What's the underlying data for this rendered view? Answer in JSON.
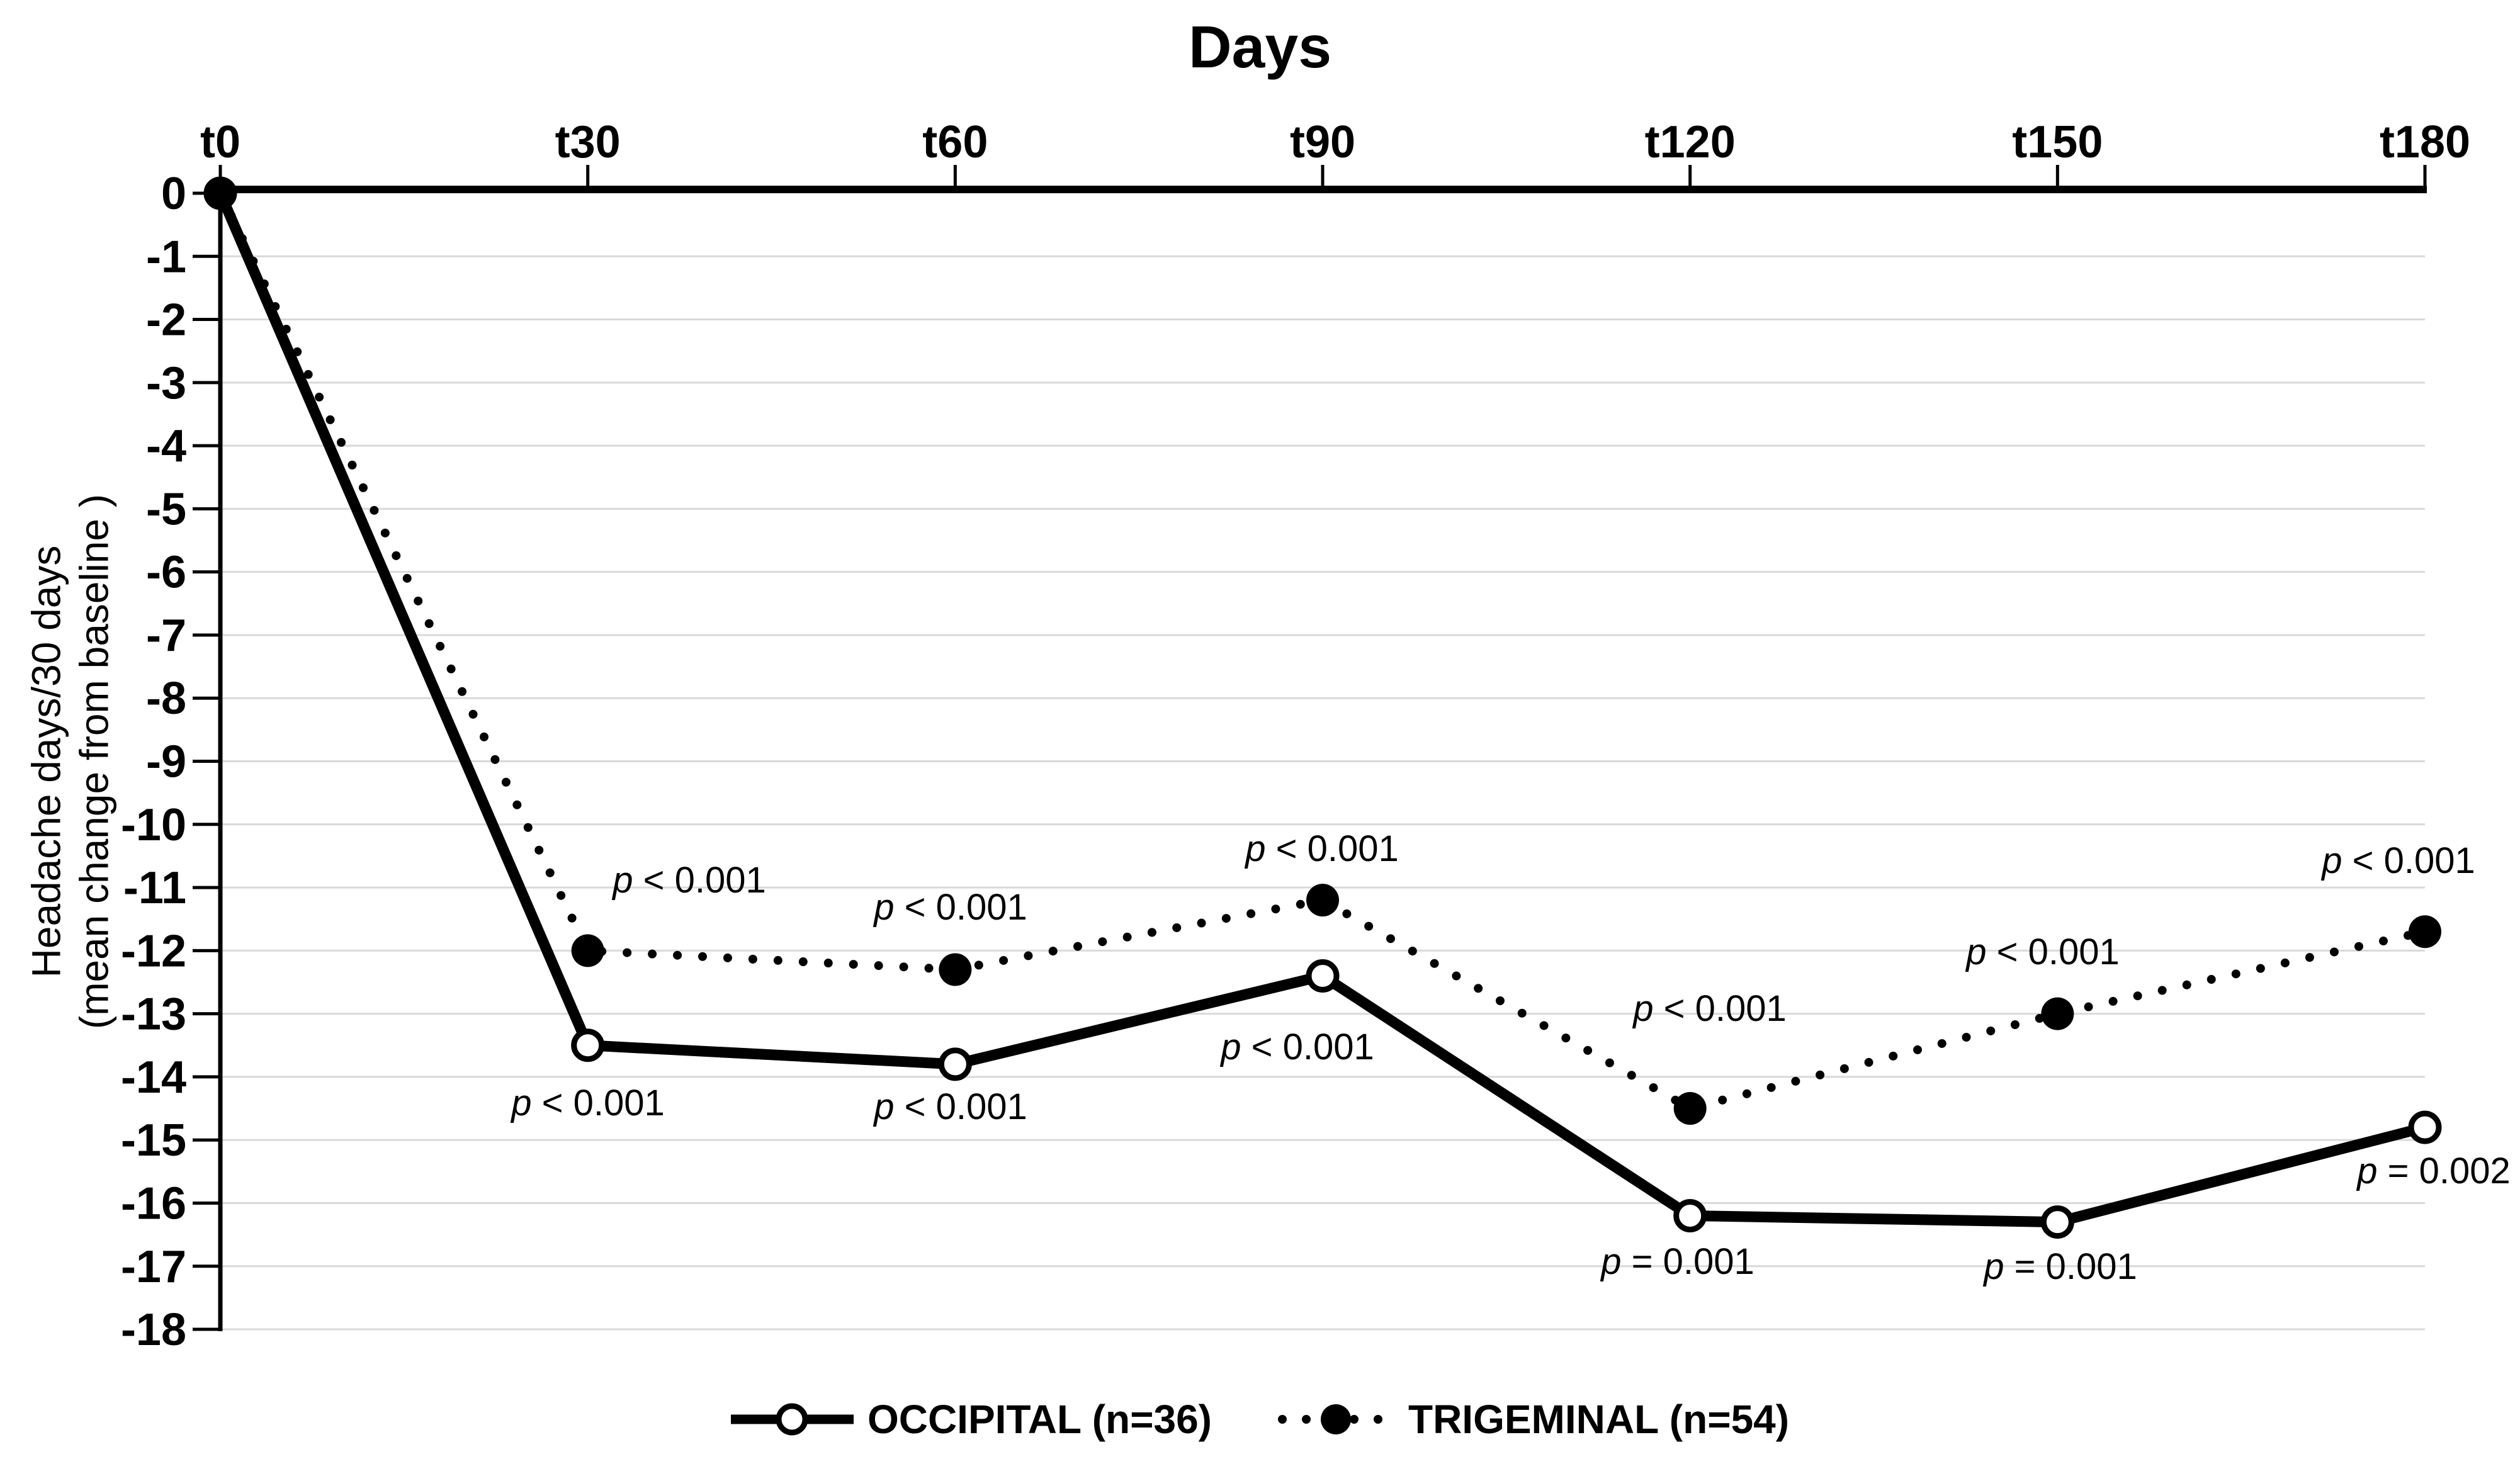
{
  "chart": {
    "colors": {
      "series": "#000000",
      "gridline": "#d9d9d9",
      "background": "#ffffff",
      "text": "#000000"
    }
  },
  "chart_data": {
    "type": "line",
    "title": "Days",
    "categories": [
      "t0",
      "t30",
      "t60",
      "t90",
      "t120",
      "t150",
      "t180"
    ],
    "x_axis": {
      "position": "top",
      "title": "Days",
      "tick_labels": [
        "t0",
        "t30",
        "t60",
        "t90",
        "t120",
        "t150",
        "t180"
      ]
    },
    "y_axis": {
      "title_line1": "Headache days/30 days",
      "title_line2": "(mean change from baseline )",
      "min": -18,
      "max": 0,
      "step": 1,
      "tick_labels": [
        "0",
        "-1",
        "-2",
        "-3",
        "-4",
        "-5",
        "-6",
        "-7",
        "-8",
        "-9",
        "-10",
        "-11",
        "-12",
        "-13",
        "-14",
        "-15",
        "-16",
        "-17",
        "-18"
      ]
    },
    "grid": "horizontal",
    "legend_position": "bottom",
    "series": [
      {
        "name": "OCCIPITAL (n=36)",
        "line_style": "solid",
        "marker": "open-circle",
        "values": [
          0,
          -13.5,
          -13.8,
          -12.4,
          -16.2,
          -16.3,
          -14.8
        ],
        "p_annotations": [
          null,
          "p < 0.001",
          "p < 0.001",
          "p < 0.001",
          "p = 0.001",
          "p = 0.001",
          "p = 0.002"
        ],
        "p_annotation_side": "below"
      },
      {
        "name": "TRIGEMINAL (n=54)",
        "line_style": "dotted",
        "marker": "filled-circle",
        "values": [
          0,
          -12.0,
          -12.3,
          -11.2,
          -14.5,
          -13.0,
          -11.7
        ],
        "p_annotations": [
          null,
          "p < 0.001",
          "p < 0.001",
          "p < 0.001",
          "p < 0.001",
          "p < 0.001",
          "p < 0.001"
        ],
        "p_annotation_side": "above"
      }
    ]
  }
}
